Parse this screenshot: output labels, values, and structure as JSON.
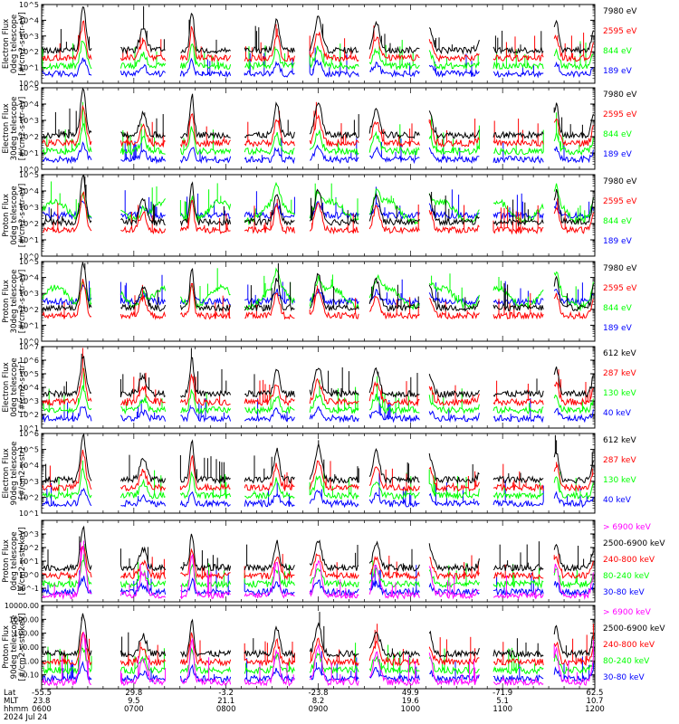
{
  "colors": {
    "blue": "#0000ff",
    "red": "#ff0000",
    "green": "#00ff00",
    "black": "#000000",
    "magenta": "#ff00ff"
  },
  "x_axis": {
    "row_labels": [
      "Lat",
      "MLT",
      "hhmm",
      "2024 Jul 24"
    ],
    "ticks": [
      {
        "lat": "-55.5",
        "mlt": "23.8",
        "hhmm": "0600"
      },
      {
        "lat": "29.8",
        "mlt": "9.5",
        "hhmm": "0700"
      },
      {
        "lat": "-3.2",
        "mlt": "21.1",
        "hhmm": "0800"
      },
      {
        "lat": "-23.8",
        "mlt": "8.2",
        "hhmm": "0900"
      },
      {
        "lat": "49.9",
        "mlt": "19.6",
        "hhmm": "1000"
      },
      {
        "lat": "-71.9",
        "mlt": "5.1",
        "hhmm": "1100"
      },
      {
        "lat": "62.5",
        "mlt": "10.7",
        "hhmm": "1200"
      }
    ],
    "range_hours": [
      6,
      12
    ]
  },
  "chart_data": [
    {
      "type": "line",
      "ylabel_lines": [
        "TED",
        "Electron Flux",
        "0deg telescope",
        "[#/cm2-s-str-eV]"
      ],
      "yscale": "log",
      "ylim_exp": [
        0,
        5
      ],
      "ytick_labels": [
        "10^0",
        "10^1",
        "10^2",
        "10^3",
        "10^4",
        "10^5"
      ],
      "series": [
        {
          "name": "7980 eV",
          "color": "black"
        },
        {
          "name": "2595 eV",
          "color": "red"
        },
        {
          "name": "844 eV",
          "color": "green"
        },
        {
          "name": "189 eV",
          "color": "blue"
        }
      ]
    },
    {
      "type": "line",
      "ylabel_lines": [
        "TED",
        "Electron Flux",
        "30deg telescope",
        "[#/cm2-s-str-eV]"
      ],
      "yscale": "log",
      "ylim_exp": [
        0,
        5
      ],
      "ytick_labels": [
        "10^0",
        "10^1",
        "10^2",
        "10^3",
        "10^4",
        "10^5"
      ],
      "series": [
        {
          "name": "7980 eV",
          "color": "black"
        },
        {
          "name": "2595 eV",
          "color": "red"
        },
        {
          "name": "844 eV",
          "color": "green"
        },
        {
          "name": "189 eV",
          "color": "blue"
        }
      ]
    },
    {
      "type": "line",
      "ylabel_lines": [
        "TED",
        "Proton Flux",
        "0deg telescope",
        "[#/cm2-s-str-eV]"
      ],
      "yscale": "log",
      "ylim_exp": [
        0,
        5
      ],
      "ytick_labels": [
        "10^0",
        "10^1",
        "10^2",
        "10^3",
        "10^4",
        "10^5"
      ],
      "series": [
        {
          "name": "7980 eV",
          "color": "black"
        },
        {
          "name": "2595 eV",
          "color": "red"
        },
        {
          "name": "844 eV",
          "color": "green"
        },
        {
          "name": "189 eV",
          "color": "blue"
        }
      ]
    },
    {
      "type": "line",
      "ylabel_lines": [
        "TED",
        "Proton Flux",
        "30deg telescope",
        "[#/cm2-s-str-eV]"
      ],
      "yscale": "log",
      "ylim_exp": [
        0,
        5
      ],
      "ytick_labels": [
        "10^0",
        "10^1",
        "10^2",
        "10^3",
        "10^4",
        "10^5"
      ],
      "series": [
        {
          "name": "7980 eV",
          "color": "black"
        },
        {
          "name": "2595 eV",
          "color": "red"
        },
        {
          "name": "844 eV",
          "color": "green"
        },
        {
          "name": "189 eV",
          "color": "blue"
        }
      ]
    },
    {
      "type": "line",
      "ylabel_lines": [
        "MEPED",
        "Electron Flux",
        "0deg telescope",
        "[#/cm2-s-str]"
      ],
      "yscale": "log",
      "ylim_exp": [
        1,
        7
      ],
      "ytick_labels": [
        "10^1",
        "10^2",
        "10^3",
        "10^4",
        "10^5",
        "10^6",
        "10^7"
      ],
      "major_exp": [
        2,
        4,
        6
      ],
      "series": [
        {
          "name": "612 keV",
          "color": "black"
        },
        {
          "name": "287 keV",
          "color": "red"
        },
        {
          "name": "130 keV",
          "color": "green"
        },
        {
          "name": "40 keV",
          "color": "blue"
        }
      ]
    },
    {
      "type": "line",
      "ylabel_lines": [
        "MEPED",
        "Electron Flux",
        "90deg telescope",
        "[#/cm2-s-str]"
      ],
      "yscale": "log",
      "ylim_exp": [
        1,
        6
      ],
      "ytick_labels": [
        "10^1",
        "10^2",
        "10^3",
        "10^4",
        "10^5",
        "10^6"
      ],
      "major_exp": [
        2,
        4,
        6
      ],
      "series": [
        {
          "name": "612 keV",
          "color": "black"
        },
        {
          "name": "287 keV",
          "color": "red"
        },
        {
          "name": "130 keV",
          "color": "green"
        },
        {
          "name": "40 keV",
          "color": "blue"
        }
      ]
    },
    {
      "type": "line",
      "ylabel_lines": [
        "MEPED",
        "Proton Flux",
        "0deg telescope",
        "[#/cm2-s-str-keV]"
      ],
      "yscale": "log",
      "ylim_exp": [
        -2,
        4
      ],
      "ytick_labels": [
        "10^-1",
        "10^0",
        "10^1",
        "10^2",
        "10^3"
      ],
      "series": [
        {
          "name": "> 6900 keV",
          "color": "magenta"
        },
        {
          "name": "2500-6900 keV",
          "color": "black"
        },
        {
          "name": "240-800 keV",
          "color": "red"
        },
        {
          "name": "80-240 keV",
          "color": "green"
        },
        {
          "name": "30-80 keV",
          "color": "blue"
        }
      ]
    },
    {
      "type": "line",
      "ylabel_lines": [
        "MEPED",
        "Proton Flux",
        "90deg telescope",
        "[#/cm2-s-str-keV]"
      ],
      "yscale": "log",
      "ylim_exp": [
        -2,
        4
      ],
      "ytick_labels": [
        "0.10",
        "1.00",
        "10.00",
        "100.00",
        "1000.00",
        "10000.00"
      ],
      "series": [
        {
          "name": "> 6900 keV",
          "color": "magenta"
        },
        {
          "name": "2500-6900 keV",
          "color": "black"
        },
        {
          "name": "240-800 keV",
          "color": "red"
        },
        {
          "name": "80-240 keV",
          "color": "green"
        },
        {
          "name": "30-80 keV",
          "color": "blue"
        }
      ]
    }
  ]
}
